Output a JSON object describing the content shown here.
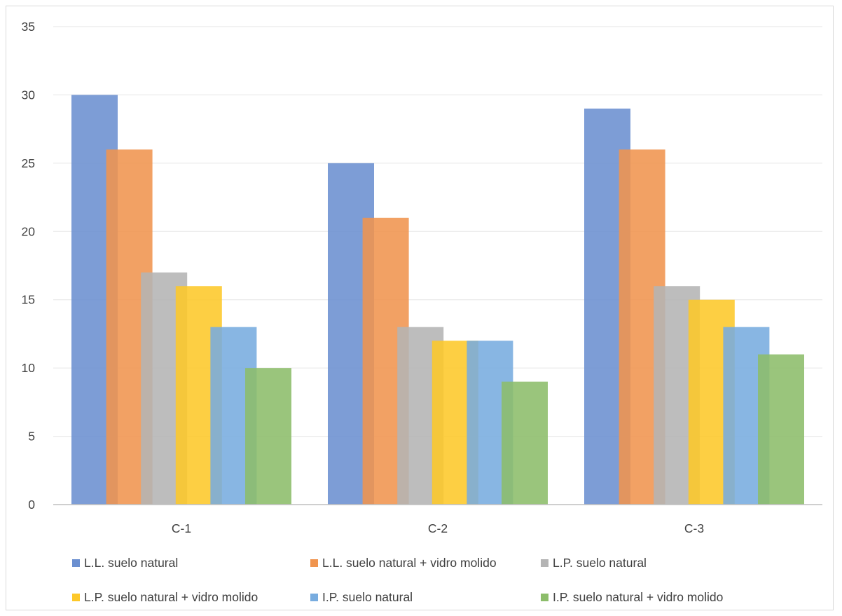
{
  "chart_data": {
    "type": "bar",
    "title": "",
    "xlabel": "",
    "ylabel": "",
    "ylim": [
      0,
      35
    ],
    "yticks": [
      "0",
      "5",
      "10",
      "15",
      "20",
      "25",
      "30",
      "35"
    ],
    "grid": true,
    "legend_position": "bottom",
    "categories": [
      "C-1",
      "C-2",
      "C-3"
    ],
    "series": [
      {
        "name": "L.L. suelo natural",
        "color": "#6b8fd0",
        "values": [
          30,
          25,
          29
        ]
      },
      {
        "name": "L.L. suelo natural + vidro molido",
        "color": "#f0944e",
        "values": [
          26,
          21,
          26
        ]
      },
      {
        "name": "L.P. suelo natural",
        "color": "#b4b4b4",
        "values": [
          17,
          13,
          16
        ]
      },
      {
        "name": "L.P. suelo natural + vidro molido",
        "color": "#fdc829",
        "values": [
          16,
          12,
          15
        ]
      },
      {
        "name": "I.P. suelo natural",
        "color": "#78acdf",
        "values": [
          13,
          12,
          13
        ]
      },
      {
        "name": "I.P. suelo natural + vidro molido",
        "color": "#8cbd6a",
        "values": [
          10,
          9,
          11
        ]
      }
    ]
  }
}
